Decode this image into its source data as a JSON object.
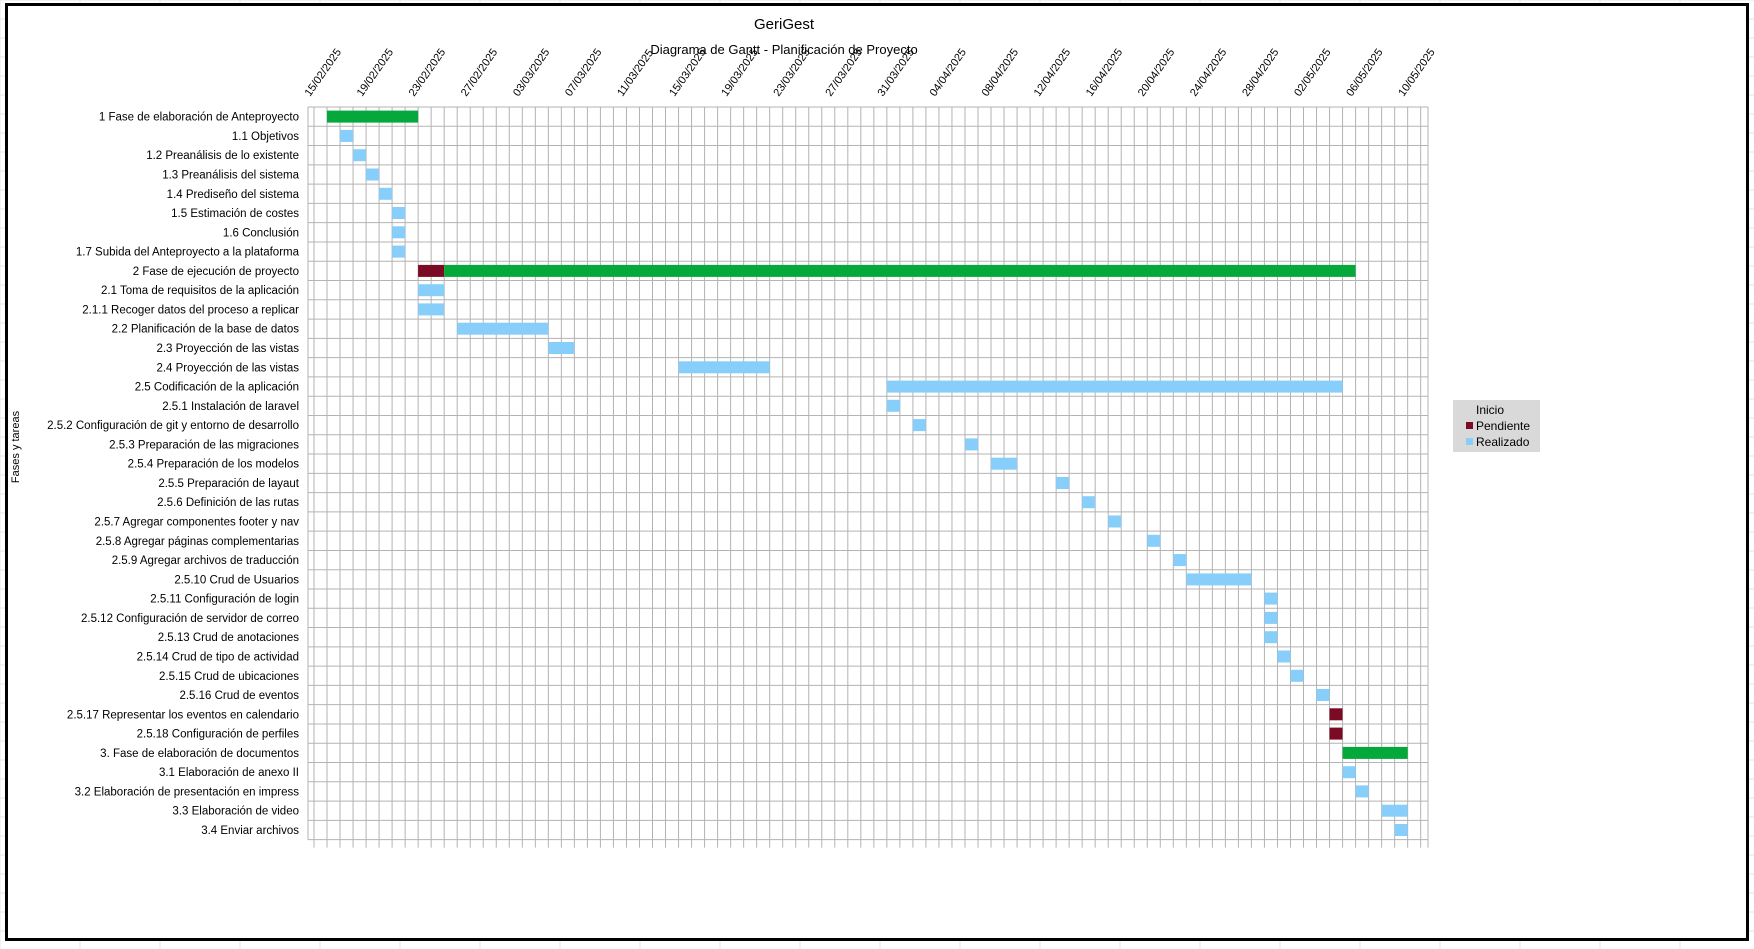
{
  "chart_data": {
    "type": "bar",
    "subtype": "gantt",
    "title": "GeriGest",
    "subtitle": "Diagrama de Gantt - Planificación de Proyecto",
    "ylabel": "Fases y tareas",
    "xlabel": "",
    "x_axis": {
      "type": "date",
      "range": [
        "2025-02-13",
        "2025-05-12"
      ],
      "tick_labels": [
        "15/02/2025",
        "19/02/2025",
        "23/02/2025",
        "27/02/2025",
        "03/03/2025",
        "07/03/2025",
        "11/03/2025",
        "15/03/2025",
        "19/03/2025",
        "23/03/2025",
        "27/03/2025",
        "31/03/2025",
        "04/04/2025",
        "08/04/2025",
        "12/04/2025",
        "16/04/2025",
        "20/04/2025",
        "24/04/2025",
        "28/04/2025",
        "02/05/2025",
        "06/05/2025",
        "10/05/2025"
      ],
      "tick_dates": [
        "2025-02-15",
        "2025-02-19",
        "2025-02-23",
        "2025-02-27",
        "2025-03-03",
        "2025-03-07",
        "2025-03-11",
        "2025-03-15",
        "2025-03-19",
        "2025-03-23",
        "2025-03-27",
        "2025-03-31",
        "2025-04-04",
        "2025-04-08",
        "2025-04-12",
        "2025-04-16",
        "2025-04-20",
        "2025-04-24",
        "2025-04-28",
        "2025-05-02",
        "2025-05-06",
        "2025-05-10"
      ]
    },
    "grid": true,
    "legend": {
      "placement": "right",
      "title": "Inicio",
      "entries": [
        {
          "name": "Pendiente",
          "color": "#7b0a24"
        },
        {
          "name": "Realizado",
          "color": "#87cefa"
        }
      ]
    },
    "colors": {
      "phase": "#05a83a",
      "Pendiente": "#7b0a24",
      "Realizado": "#87cefa"
    },
    "tasks": [
      {
        "label": "1 Fase de elaboración de Anteproyecto",
        "segments": [
          {
            "start": "2025-02-15",
            "end": "2025-02-21",
            "status": "phase"
          }
        ]
      },
      {
        "label": "1.1 Objetivos",
        "segments": [
          {
            "start": "2025-02-16",
            "end": "2025-02-16",
            "status": "Realizado"
          }
        ]
      },
      {
        "label": "1.2 Preanálisis de lo existente",
        "segments": [
          {
            "start": "2025-02-17",
            "end": "2025-02-17",
            "status": "Realizado"
          }
        ]
      },
      {
        "label": "1.3 Preanálisis del sistema",
        "segments": [
          {
            "start": "2025-02-18",
            "end": "2025-02-18",
            "status": "Realizado"
          }
        ]
      },
      {
        "label": "1.4 Prediseño del sistema",
        "segments": [
          {
            "start": "2025-02-19",
            "end": "2025-02-19",
            "status": "Realizado"
          }
        ]
      },
      {
        "label": "1.5 Estimación de costes",
        "segments": [
          {
            "start": "2025-02-20",
            "end": "2025-02-20",
            "status": "Realizado"
          }
        ]
      },
      {
        "label": "1.6 Conclusión",
        "segments": [
          {
            "start": "2025-02-20",
            "end": "2025-02-20",
            "status": "Realizado"
          }
        ]
      },
      {
        "label": "1.7 Subida  del Anteproyecto a la plataforma",
        "segments": [
          {
            "start": "2025-02-20",
            "end": "2025-02-20",
            "status": "Realizado"
          }
        ]
      },
      {
        "label": "2 Fase de ejecución de proyecto",
        "segments": [
          {
            "start": "2025-02-22",
            "end": "2025-02-23",
            "status": "Pendiente"
          },
          {
            "start": "2025-02-24",
            "end": "2025-05-04",
            "status": "phase"
          }
        ]
      },
      {
        "label": "2.1 Toma de requisitos de la aplicación",
        "segments": [
          {
            "start": "2025-02-22",
            "end": "2025-02-23",
            "status": "Realizado"
          }
        ]
      },
      {
        "label": "2.1.1 Recoger datos del proceso a replicar",
        "segments": [
          {
            "start": "2025-02-22",
            "end": "2025-02-23",
            "status": "Realizado"
          }
        ]
      },
      {
        "label": "2.2 Planificación de la base de datos",
        "segments": [
          {
            "start": "2025-02-25",
            "end": "2025-03-03",
            "status": "Realizado"
          }
        ]
      },
      {
        "label": "2.3 Proyección de las vistas",
        "segments": [
          {
            "start": "2025-03-04",
            "end": "2025-03-05",
            "status": "Realizado"
          }
        ]
      },
      {
        "label": "2.4 Proyección de las vistas",
        "segments": [
          {
            "start": "2025-03-14",
            "end": "2025-03-20",
            "status": "Realizado"
          }
        ]
      },
      {
        "label": "2.5 Codificación de la aplicación",
        "segments": [
          {
            "start": "2025-03-30",
            "end": "2025-05-03",
            "status": "Realizado"
          }
        ]
      },
      {
        "label": "2.5.1 Instalación de laravel",
        "segments": [
          {
            "start": "2025-03-30",
            "end": "2025-03-30",
            "status": "Realizado"
          }
        ]
      },
      {
        "label": "2.5.2 Configuración de git y entorno de desarrollo",
        "segments": [
          {
            "start": "2025-04-01",
            "end": "2025-04-01",
            "status": "Realizado"
          }
        ]
      },
      {
        "label": "2.5.3 Preparación de las migraciones",
        "segments": [
          {
            "start": "2025-04-05",
            "end": "2025-04-05",
            "status": "Realizado"
          }
        ]
      },
      {
        "label": "2.5.4 Preparación de los modelos",
        "segments": [
          {
            "start": "2025-04-07",
            "end": "2025-04-08",
            "status": "Realizado"
          }
        ]
      },
      {
        "label": "2.5.5 Preparación de layaut",
        "segments": [
          {
            "start": "2025-04-12",
            "end": "2025-04-12",
            "status": "Realizado"
          }
        ]
      },
      {
        "label": "2.5.6 Definición de las rutas",
        "segments": [
          {
            "start": "2025-04-14",
            "end": "2025-04-14",
            "status": "Realizado"
          }
        ]
      },
      {
        "label": "2.5.7 Agregar componentes footer y nav",
        "segments": [
          {
            "start": "2025-04-16",
            "end": "2025-04-16",
            "status": "Realizado"
          }
        ]
      },
      {
        "label": "2.5.8 Agregar páginas complementarias",
        "segments": [
          {
            "start": "2025-04-19",
            "end": "2025-04-19",
            "status": "Realizado"
          }
        ]
      },
      {
        "label": "2.5.9 Agregar archivos de traducción",
        "segments": [
          {
            "start": "2025-04-21",
            "end": "2025-04-21",
            "status": "Realizado"
          }
        ]
      },
      {
        "label": "2.5.10 Crud de Usuarios",
        "segments": [
          {
            "start": "2025-04-22",
            "end": "2025-04-26",
            "status": "Realizado"
          }
        ]
      },
      {
        "label": "2.5.11 Configuración de login",
        "segments": [
          {
            "start": "2025-04-28",
            "end": "2025-04-28",
            "status": "Realizado"
          }
        ]
      },
      {
        "label": "2.5.12 Configuración de servidor de correo",
        "segments": [
          {
            "start": "2025-04-28",
            "end": "2025-04-28",
            "status": "Realizado"
          }
        ]
      },
      {
        "label": "2.5.13 Crud de anotaciones",
        "segments": [
          {
            "start": "2025-04-28",
            "end": "2025-04-28",
            "status": "Realizado"
          }
        ]
      },
      {
        "label": "2.5.14 Crud de tipo de actividad",
        "segments": [
          {
            "start": "2025-04-29",
            "end": "2025-04-29",
            "status": "Realizado"
          }
        ]
      },
      {
        "label": "2.5.15 Crud de ubicaciones",
        "segments": [
          {
            "start": "2025-04-30",
            "end": "2025-04-30",
            "status": "Realizado"
          }
        ]
      },
      {
        "label": "2.5.16 Crud de eventos",
        "segments": [
          {
            "start": "2025-05-02",
            "end": "2025-05-02",
            "status": "Realizado"
          }
        ]
      },
      {
        "label": "2.5.17 Representar los eventos en calendario",
        "segments": [
          {
            "start": "2025-05-03",
            "end": "2025-05-03",
            "status": "Pendiente"
          }
        ]
      },
      {
        "label": "2.5.18 Configuración de perfiles",
        "segments": [
          {
            "start": "2025-05-03",
            "end": "2025-05-03",
            "status": "Pendiente"
          }
        ]
      },
      {
        "label": "3. Fase de elaboración de documentos",
        "segments": [
          {
            "start": "2025-05-04",
            "end": "2025-05-08",
            "status": "phase"
          }
        ]
      },
      {
        "label": "3.1 Elaboración de anexo II",
        "segments": [
          {
            "start": "2025-05-04",
            "end": "2025-05-04",
            "status": "Realizado"
          }
        ]
      },
      {
        "label": "3.2 Elaboración de presentación en impress",
        "segments": [
          {
            "start": "2025-05-05",
            "end": "2025-05-05",
            "status": "Realizado"
          }
        ]
      },
      {
        "label": "3.3 Elaboración de video",
        "segments": [
          {
            "start": "2025-05-07",
            "end": "2025-05-08",
            "status": "Realizado"
          }
        ]
      },
      {
        "label": "3.4 Enviar archivos",
        "segments": [
          {
            "start": "2025-05-08",
            "end": "2025-05-08",
            "status": "Realizado"
          }
        ]
      }
    ]
  }
}
